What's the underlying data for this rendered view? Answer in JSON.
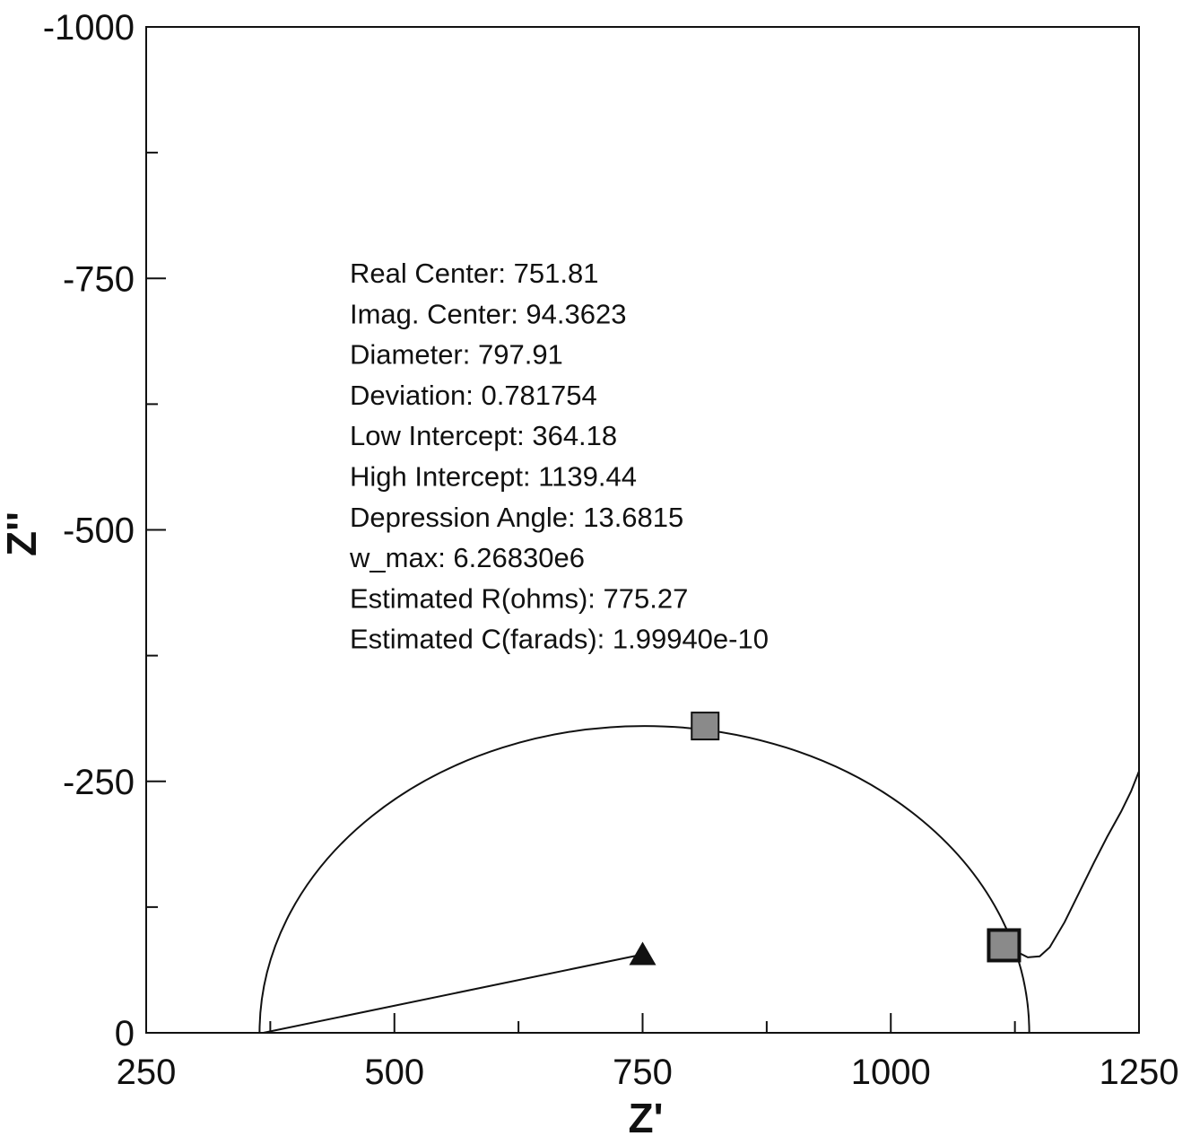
{
  "chart_data": {
    "type": "scatter",
    "title": "",
    "xlabel": "Z'",
    "ylabel": "Z''",
    "xlim": [
      250,
      1250
    ],
    "ylim": [
      0,
      -1000
    ],
    "y_axis_inverted": true,
    "x_ticks": [
      250,
      500,
      750,
      1000,
      1250
    ],
    "x_tick_labels": [
      "250",
      "500",
      "750",
      "1000",
      "1250"
    ],
    "y_ticks": [
      0,
      -250,
      -500,
      -750,
      -1000
    ],
    "y_tick_labels": [
      "0",
      "-250",
      "-500",
      "-750",
      "-1000"
    ],
    "x_minor_ticks": [
      375,
      625,
      875,
      1125
    ],
    "y_minor_ticks": [
      -125,
      -375,
      -625,
      -875
    ],
    "grid": false,
    "legend": "none",
    "fit_arc": {
      "low_intercept": 364.18,
      "high_intercept": 1139.44,
      "peak": [
        752,
        -305
      ]
    },
    "series": [
      {
        "type": "line",
        "values_xy": [
          [
            1118,
            -88
          ],
          [
            1128,
            -80
          ],
          [
            1138,
            -75
          ],
          [
            1150,
            -76
          ],
          [
            1160,
            -85
          ],
          [
            1175,
            -110
          ],
          [
            1190,
            -140
          ],
          [
            1205,
            -170
          ],
          [
            1218,
            -195
          ],
          [
            1232,
            -220
          ],
          [
            1242,
            -240
          ],
          [
            1250,
            -260
          ]
        ]
      },
      {
        "type": "line",
        "values_xy": [
          [
            368,
            0
          ],
          [
            750,
            -78
          ]
        ]
      }
    ],
    "markers": [
      {
        "x": 813,
        "y": -305,
        "shape": "square"
      },
      {
        "x": 1114,
        "y": -87,
        "shape": "square"
      }
    ],
    "annotation": {
      "lines": [
        "Real Center: 751.81",
        "Imag. Center: 94.3623",
        "Diameter: 797.91",
        "Deviation: 0.781754",
        "Low Intercept: 364.18",
        "High Intercept: 1139.44",
        "Depression Angle: 13.6815",
        "w_max: 6.26830e6",
        "Estimated R(ohms): 775.27",
        "Estimated C(farads): 1.99940e-10"
      ]
    },
    "colors": {
      "ink": "#111111",
      "marker_fill": "#8a8a8a",
      "background": "#ffffff"
    }
  }
}
